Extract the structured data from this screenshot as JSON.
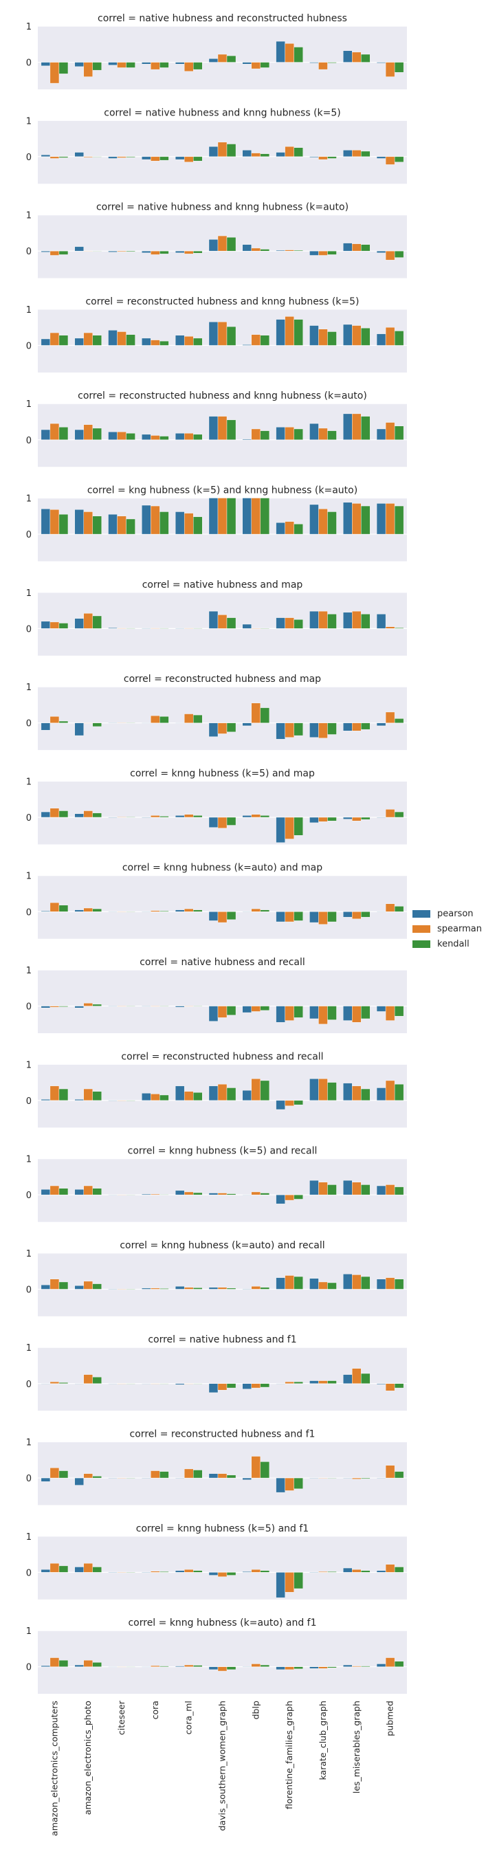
{
  "chart_data": {
    "type": "bar",
    "ylim": [
      -0.75,
      1.0
    ],
    "yticks": [
      0,
      1
    ],
    "grid": true,
    "legend_position": "right",
    "categories": [
      "amazon_electronics_computers",
      "amazon_electronics_photo",
      "citeseer",
      "cora",
      "cora_ml",
      "davis_southern_women_graph",
      "dblp",
      "florentine_families_graph",
      "karate_club_graph",
      "les_miserables_graph",
      "pubmed"
    ],
    "series_meta": [
      {
        "name": "pearson",
        "color": "#3274a1"
      },
      {
        "name": "spearman",
        "color": "#e1812c"
      },
      {
        "name": "kendall",
        "color": "#3a923a"
      }
    ],
    "panels": [
      {
        "title": "correl =  native hubness and reconstructed hubness",
        "pearson": [
          -0.1,
          -0.12,
          -0.08,
          -0.05,
          -0.05,
          0.1,
          -0.05,
          0.58,
          -0.02,
          0.32,
          -0.02
        ],
        "spearman": [
          -0.58,
          -0.4,
          -0.15,
          -0.2,
          -0.25,
          0.22,
          -0.18,
          0.52,
          -0.2,
          0.28,
          -0.4
        ],
        "kendall": [
          -0.32,
          -0.22,
          -0.15,
          -0.15,
          -0.2,
          0.18,
          -0.15,
          0.42,
          -0.02,
          0.22,
          -0.28
        ]
      },
      {
        "title": "correl =  native hubness and knng hubness (k=5)",
        "pearson": [
          0.05,
          0.12,
          -0.05,
          -0.08,
          -0.08,
          0.28,
          0.18,
          0.12,
          -0.02,
          0.18,
          -0.05
        ],
        "spearman": [
          -0.05,
          -0.02,
          -0.03,
          -0.12,
          -0.15,
          0.4,
          0.1,
          0.28,
          -0.08,
          0.18,
          -0.22
        ],
        "kendall": [
          -0.03,
          -0.01,
          -0.02,
          -0.1,
          -0.12,
          0.35,
          0.08,
          0.25,
          -0.05,
          0.15,
          -0.15
        ]
      },
      {
        "title": "correl =  native hubness and knng hubness (k=auto)",
        "pearson": [
          -0.03,
          0.12,
          -0.03,
          -0.05,
          -0.05,
          0.32,
          0.18,
          0.02,
          -0.12,
          0.22,
          -0.05
        ],
        "spearman": [
          -0.12,
          0.0,
          -0.02,
          -0.1,
          -0.08,
          0.42,
          0.08,
          0.03,
          -0.12,
          0.2,
          -0.25
        ],
        "kendall": [
          -0.1,
          0.0,
          -0.02,
          -0.08,
          -0.06,
          0.38,
          0.05,
          0.02,
          -0.1,
          0.18,
          -0.18
        ]
      },
      {
        "title": "correl =  reconstructed hubness and knng hubness (k=5)",
        "pearson": [
          0.18,
          0.2,
          0.42,
          0.2,
          0.28,
          0.65,
          0.02,
          0.72,
          0.55,
          0.58,
          0.32
        ],
        "spearman": [
          0.35,
          0.35,
          0.38,
          0.15,
          0.25,
          0.65,
          0.3,
          0.8,
          0.45,
          0.55,
          0.5
        ],
        "kendall": [
          0.28,
          0.28,
          0.3,
          0.12,
          0.2,
          0.52,
          0.28,
          0.72,
          0.38,
          0.48,
          0.4
        ]
      },
      {
        "title": "correl =  reconstructed hubness and knng hubness (k=auto)",
        "pearson": [
          0.28,
          0.28,
          0.22,
          0.15,
          0.18,
          0.65,
          0.02,
          0.35,
          0.45,
          0.72,
          0.3
        ],
        "spearman": [
          0.45,
          0.42,
          0.22,
          0.12,
          0.18,
          0.65,
          0.3,
          0.35,
          0.32,
          0.72,
          0.48
        ],
        "kendall": [
          0.35,
          0.32,
          0.18,
          0.1,
          0.15,
          0.55,
          0.25,
          0.3,
          0.25,
          0.65,
          0.38
        ]
      },
      {
        "title": "correl =  kng hubness (k=5) and knng hubness (k=auto)",
        "pearson": [
          0.7,
          0.68,
          0.55,
          0.8,
          0.62,
          1.0,
          1.0,
          0.32,
          0.82,
          0.88,
          0.85
        ],
        "spearman": [
          0.68,
          0.62,
          0.5,
          0.78,
          0.58,
          1.0,
          1.0,
          0.35,
          0.7,
          0.85,
          0.85
        ],
        "kendall": [
          0.55,
          0.5,
          0.42,
          0.62,
          0.48,
          1.0,
          1.0,
          0.28,
          0.62,
          0.78,
          0.78
        ]
      },
      {
        "title": "correl =  native hubness and map",
        "pearson": [
          0.2,
          0.28,
          0.02,
          0.01,
          0.01,
          0.48,
          0.12,
          0.3,
          0.48,
          0.45,
          0.4
        ],
        "spearman": [
          0.18,
          0.42,
          0.01,
          0.01,
          0.01,
          0.38,
          0.0,
          0.3,
          0.48,
          0.48,
          0.05
        ],
        "kendall": [
          0.15,
          0.35,
          0.01,
          0.01,
          0.01,
          0.3,
          0.0,
          0.25,
          0.4,
          0.4,
          0.02
        ]
      },
      {
        "title": "correl =  reconstructed hubness and map",
        "pearson": [
          -0.2,
          -0.35,
          0.01,
          0.0,
          0.0,
          -0.38,
          -0.08,
          -0.45,
          -0.4,
          -0.22,
          -0.08
        ],
        "spearman": [
          0.18,
          0.0,
          0.01,
          0.2,
          0.25,
          -0.3,
          0.55,
          -0.4,
          -0.42,
          -0.22,
          0.3
        ],
        "kendall": [
          0.05,
          -0.1,
          0.01,
          0.18,
          0.22,
          -0.25,
          0.42,
          -0.35,
          -0.32,
          -0.18,
          0.12
        ]
      },
      {
        "title": "correl =  knng hubness (k=5) and map",
        "pearson": [
          0.15,
          0.1,
          0.0,
          0.0,
          0.05,
          -0.28,
          0.05,
          -0.7,
          -0.15,
          -0.05,
          0.0
        ],
        "spearman": [
          0.25,
          0.18,
          0.01,
          0.05,
          0.08,
          -0.3,
          0.08,
          -0.6,
          -0.12,
          -0.1,
          0.22
        ],
        "kendall": [
          0.18,
          0.12,
          0.01,
          0.03,
          0.05,
          -0.22,
          0.05,
          -0.5,
          -0.1,
          -0.06,
          0.15
        ]
      },
      {
        "title": "correl =  knng hubness (k=auto) and map",
        "pearson": [
          0.02,
          0.05,
          0.0,
          0.0,
          0.05,
          -0.25,
          0.0,
          -0.28,
          -0.3,
          -0.15,
          0.0
        ],
        "spearman": [
          0.25,
          0.1,
          0.0,
          0.03,
          0.08,
          -0.3,
          0.08,
          -0.28,
          -0.35,
          -0.2,
          0.22
        ],
        "kendall": [
          0.18,
          0.08,
          0.0,
          0.02,
          0.05,
          -0.22,
          0.05,
          -0.25,
          -0.28,
          -0.15,
          0.15
        ]
      },
      {
        "title": "correl =  native hubness and recall",
        "pearson": [
          -0.05,
          -0.05,
          0.0,
          0.0,
          -0.03,
          -0.42,
          -0.18,
          -0.45,
          -0.35,
          -0.4,
          -0.15
        ],
        "spearman": [
          -0.03,
          0.08,
          0.0,
          0.0,
          0.0,
          -0.32,
          -0.15,
          -0.4,
          -0.5,
          -0.45,
          -0.4
        ],
        "kendall": [
          -0.02,
          0.05,
          0.0,
          0.0,
          0.0,
          -0.25,
          -0.12,
          -0.32,
          -0.38,
          -0.35,
          -0.28
        ]
      },
      {
        "title": "correl =  reconstructed hubness and recall",
        "pearson": [
          0.03,
          0.03,
          0.0,
          0.2,
          0.4,
          0.4,
          0.28,
          -0.25,
          0.6,
          0.48,
          0.35
        ],
        "spearman": [
          0.4,
          0.32,
          0.0,
          0.18,
          0.25,
          0.45,
          0.6,
          -0.15,
          0.6,
          0.4,
          0.55
        ],
        "kendall": [
          0.32,
          0.25,
          0.0,
          0.15,
          0.22,
          0.35,
          0.55,
          -0.12,
          0.5,
          0.32,
          0.45
        ]
      },
      {
        "title": "correl =  knng hubness (k=5) and recall",
        "pearson": [
          0.15,
          0.15,
          0.0,
          0.02,
          0.12,
          0.05,
          0.0,
          -0.25,
          0.4,
          0.4,
          0.25
        ],
        "spearman": [
          0.25,
          0.25,
          0.0,
          0.02,
          0.08,
          0.05,
          0.08,
          -0.15,
          0.35,
          0.35,
          0.28
        ],
        "kendall": [
          0.18,
          0.18,
          0.0,
          0.01,
          0.06,
          0.03,
          0.05,
          -0.12,
          0.28,
          0.28,
          0.22
        ]
      },
      {
        "title": "correl =  knng hubness (k=auto) and recall",
        "pearson": [
          0.12,
          0.1,
          0.0,
          0.03,
          0.08,
          0.05,
          0.0,
          0.32,
          0.3,
          0.42,
          0.28
        ],
        "spearman": [
          0.28,
          0.22,
          0.0,
          0.03,
          0.05,
          0.05,
          0.08,
          0.38,
          0.2,
          0.4,
          0.32
        ],
        "kendall": [
          0.2,
          0.15,
          0.0,
          0.02,
          0.04,
          0.03,
          0.05,
          0.35,
          0.18,
          0.35,
          0.28
        ]
      },
      {
        "title": "correl =  native hubness and f1",
        "pearson": [
          0.0,
          0.0,
          0.0,
          0.0,
          -0.03,
          -0.25,
          -0.15,
          0.0,
          0.08,
          0.25,
          -0.02
        ],
        "spearman": [
          0.05,
          0.25,
          0.0,
          0.0,
          0.0,
          -0.18,
          -0.12,
          0.05,
          0.08,
          0.42,
          -0.2
        ],
        "kendall": [
          0.03,
          0.18,
          0.0,
          0.0,
          0.0,
          -0.12,
          -0.1,
          0.05,
          0.08,
          0.28,
          -0.12
        ]
      },
      {
        "title": "correl =  reconstructed hubness and f1",
        "pearson": [
          -0.1,
          -0.2,
          0.0,
          0.0,
          0.0,
          0.12,
          -0.05,
          -0.4,
          0.0,
          0.0,
          0.0
        ],
        "spearman": [
          0.28,
          0.12,
          0.0,
          0.2,
          0.25,
          0.12,
          0.6,
          -0.35,
          0.0,
          -0.03,
          0.35
        ],
        "kendall": [
          0.2,
          0.05,
          0.0,
          0.18,
          0.22,
          0.08,
          0.45,
          -0.3,
          0.0,
          -0.02,
          0.18
        ]
      },
      {
        "title": "correl =  knng hubness (k=5) and f1",
        "pearson": [
          0.08,
          0.15,
          0.0,
          0.0,
          0.05,
          -0.08,
          0.02,
          -0.7,
          -0.01,
          0.12,
          0.05
        ],
        "spearman": [
          0.25,
          0.25,
          0.0,
          0.03,
          0.08,
          -0.12,
          0.08,
          -0.55,
          0.02,
          0.08,
          0.22
        ],
        "kendall": [
          0.18,
          0.15,
          0.0,
          0.02,
          0.05,
          -0.08,
          0.05,
          -0.45,
          0.02,
          0.05,
          0.15
        ]
      },
      {
        "title": "correl =  knng hubness (k=auto) and f1",
        "pearson": [
          0.03,
          0.05,
          0.0,
          0.0,
          0.02,
          -0.08,
          0.01,
          -0.08,
          -0.05,
          0.05,
          0.08
        ],
        "spearman": [
          0.25,
          0.18,
          0.0,
          0.03,
          0.05,
          -0.12,
          0.08,
          -0.08,
          -0.05,
          0.02,
          0.25
        ],
        "kendall": [
          0.18,
          0.12,
          0.0,
          0.02,
          0.04,
          -0.08,
          0.05,
          -0.06,
          -0.03,
          0.02,
          0.15
        ]
      }
    ]
  }
}
